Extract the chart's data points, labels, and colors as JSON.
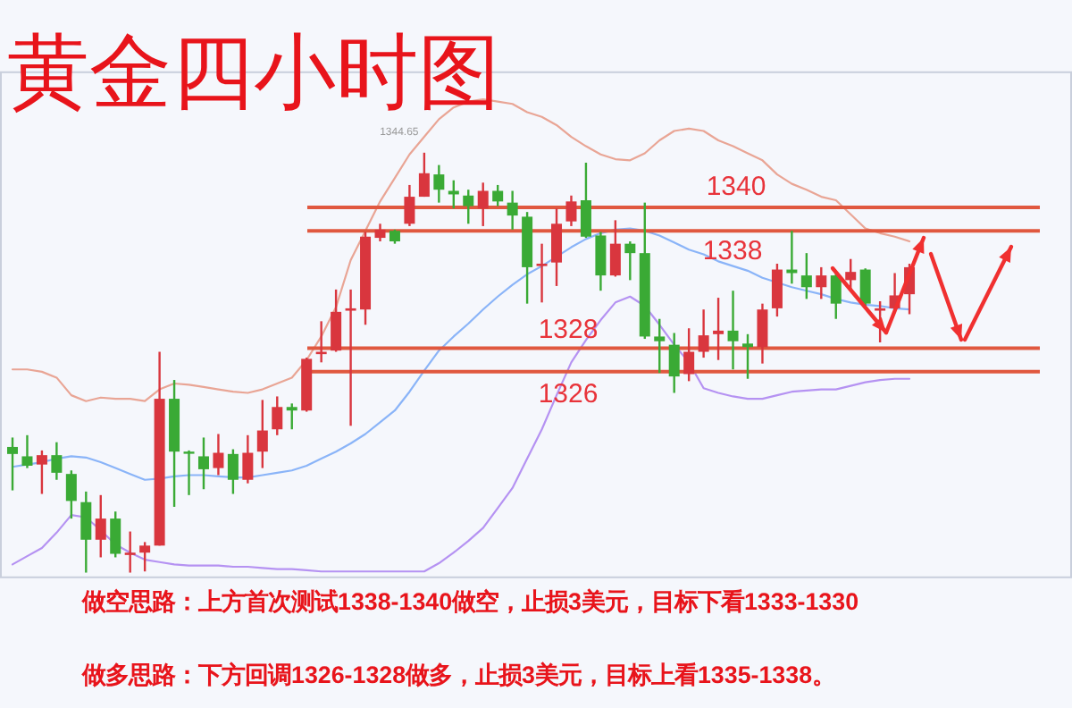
{
  "chart_data": {
    "type": "candlestick",
    "title": "黄金四小时图",
    "categories": [
      null,
      null,
      null,
      null,
      null,
      null,
      null,
      null,
      null,
      null,
      null,
      null,
      null,
      null,
      null,
      null,
      null,
      null,
      null,
      null,
      null,
      null,
      null,
      null,
      null,
      null,
      null,
      null,
      null,
      null,
      null,
      null,
      null,
      null,
      null,
      null,
      null,
      null,
      null,
      null,
      null,
      null,
      null,
      null,
      null,
      null,
      null,
      null,
      null,
      null,
      null,
      null,
      null,
      null,
      null,
      null,
      null,
      null,
      null,
      null,
      null,
      null,
      null,
      null,
      null,
      null,
      null,
      null,
      null,
      null,
      null,
      null
    ],
    "ohlc": [
      [
        1319.6,
        1320.4,
        1315.9,
        1319.0
      ],
      [
        1318.8,
        1320.6,
        1317.8,
        1318.0
      ],
      [
        1318.1,
        1319.3,
        1315.6,
        1318.9
      ],
      [
        1318.9,
        1320.0,
        1316.8,
        1317.4
      ],
      [
        1317.3,
        1317.6,
        1313.5,
        1315.0
      ],
      [
        1314.9,
        1315.8,
        1308.9,
        1311.7
      ],
      [
        1311.7,
        1315.5,
        1310.2,
        1313.5
      ],
      [
        1313.5,
        1314.1,
        1310.2,
        1310.5
      ],
      [
        1310.4,
        1312.4,
        1308.9,
        1310.6
      ],
      [
        1310.6,
        1311.5,
        1309.0,
        1311.2
      ],
      [
        1311.2,
        1327.7,
        1311.2,
        1323.7
      ],
      [
        1323.7,
        1325.3,
        1314.5,
        1319.2
      ],
      [
        1319.2,
        1319.3,
        1315.5,
        1319.1
      ],
      [
        1318.8,
        1320.4,
        1316.0,
        1317.7
      ],
      [
        1317.8,
        1320.7,
        1317.2,
        1319.1
      ],
      [
        1319.0,
        1319.4,
        1315.6,
        1316.8
      ],
      [
        1316.8,
        1320.6,
        1316.5,
        1319.1
      ],
      [
        1319.2,
        1323.6,
        1317.8,
        1321.0
      ],
      [
        1321.1,
        1323.9,
        1320.6,
        1323.0
      ],
      [
        1323.0,
        1323.3,
        1321.1,
        1322.7
      ],
      [
        1322.7,
        1327.2,
        1322.6,
        1327.1
      ],
      [
        1327.5,
        1330.3,
        1326.8,
        1327.7
      ],
      [
        1327.8,
        1333.0,
        1327.7,
        1331.1
      ],
      [
        1331.2,
        1333.0,
        1321.4,
        1331.4
      ],
      [
        1331.3,
        1337.9,
        1330.0,
        1337.5
      ],
      [
        1337.4,
        1338.6,
        1337.1,
        1338.1
      ],
      [
        1338.0,
        1338.1,
        1336.9,
        1337.1
      ],
      [
        1338.6,
        1341.9,
        1338.4,
        1340.9
      ],
      [
        1340.9,
        1344.65,
        1340.9,
        1342.9
      ],
      [
        1342.8,
        1343.6,
        1340.4,
        1341.5
      ],
      [
        1341.4,
        1342.3,
        1339.9,
        1341.1
      ],
      [
        1341.0,
        1341.5,
        1338.6,
        1340.1
      ],
      [
        1339.9,
        1342.1,
        1338.4,
        1341.4
      ],
      [
        1341.4,
        1341.9,
        1340.1,
        1340.5
      ],
      [
        1340.4,
        1341.4,
        1338.1,
        1339.3
      ],
      [
        1339.2,
        1339.6,
        1331.8,
        1334.9
      ],
      [
        1335.0,
        1336.9,
        1331.9,
        1335.2
      ],
      [
        1335.3,
        1339.9,
        1333.3,
        1338.6
      ],
      [
        1338.8,
        1341.0,
        1338.4,
        1340.5
      ],
      [
        1340.6,
        1343.8,
        1337.4,
        1337.5
      ],
      [
        1337.6,
        1337.9,
        1332.9,
        1334.2
      ],
      [
        1334.2,
        1338.9,
        1334.1,
        1336.9
      ],
      [
        1336.9,
        1337.1,
        1333.8,
        1336.1
      ],
      [
        1336.1,
        1340.4,
        1328.8,
        1329.0
      ],
      [
        1329.0,
        1330.5,
        1325.9,
        1328.6
      ],
      [
        1328.3,
        1329.3,
        1324.2,
        1325.6
      ],
      [
        1325.8,
        1329.7,
        1325.2,
        1327.7
      ],
      [
        1327.7,
        1331.3,
        1327.2,
        1329.1
      ],
      [
        1329.2,
        1332.3,
        1327.0,
        1329.5
      ],
      [
        1329.5,
        1332.9,
        1326.2,
        1328.6
      ],
      [
        1328.4,
        1329.2,
        1325.4,
        1328.1
      ],
      [
        1328.1,
        1331.8,
        1326.7,
        1331.3
      ],
      [
        1331.4,
        1335.2,
        1330.7,
        1334.7
      ],
      [
        1334.7,
        1338.0,
        1333.5,
        1334.4
      ],
      [
        1334.2,
        1336.1,
        1332.2,
        1333.2
      ],
      [
        1333.2,
        1334.9,
        1332.2,
        1334.2
      ],
      [
        1334.2,
        1334.6,
        1330.5,
        1331.8
      ],
      [
        1333.8,
        1335.6,
        1333.0,
        1334.5
      ],
      [
        1334.7,
        1334.8,
        1331.5,
        1331.8
      ],
      [
        1331.2,
        1332.0,
        1328.5,
        1331.4
      ],
      [
        1331.4,
        1334.4,
        1331.0,
        1332.5
      ],
      [
        1332.6,
        1335.2,
        1330.9,
        1334.9
      ],
      null,
      null,
      null,
      null,
      null,
      null,
      null,
      null,
      null,
      null
    ],
    "colors": [
      "#3aaa35",
      "#3aaa35",
      "#d9363e",
      "#3aaa35",
      "#3aaa35",
      "#3aaa35",
      "#d9363e",
      "#3aaa35",
      "#d9363e",
      "#d9363e",
      "#d9363e",
      "#3aaa35",
      "#3aaa35",
      "#3aaa35",
      "#d9363e",
      "#3aaa35",
      "#d9363e",
      "#d9363e",
      "#d9363e",
      "#3aaa35",
      "#d9363e",
      "#d9363e",
      "#d9363e",
      "#d9363e",
      "#d9363e",
      "#d9363e",
      "#3aaa35",
      "#d9363e",
      "#d9363e",
      "#3aaa35",
      "#3aaa35",
      "#3aaa35",
      "#d9363e",
      "#3aaa35",
      "#3aaa35",
      "#3aaa35",
      "#d9363e",
      "#d9363e",
      "#d9363e",
      "#3aaa35",
      "#3aaa35",
      "#d9363e",
      "#3aaa35",
      "#3aaa35",
      "#3aaa35",
      "#3aaa35",
      "#d9363e",
      "#d9363e",
      "#d9363e",
      "#3aaa35",
      "#3aaa35",
      "#d9363e",
      "#d9363e",
      "#3aaa35",
      "#3aaa35",
      "#d9363e",
      "#3aaa35",
      "#d9363e",
      "#3aaa35",
      "#d9363e",
      "#d9363e",
      "#d9363e",
      null,
      null,
      null,
      null,
      null,
      null,
      null,
      null,
      null,
      null
    ],
    "series": [
      {
        "type": "line",
        "color": "#e9a595",
        "values": [
          1326.2,
          1326.2,
          1326.0,
          1325.5,
          1324.0,
          1323.5,
          1323.8,
          1323.7,
          1323.7,
          1323.5,
          1324.5,
          1325.0,
          1324.9,
          1324.7,
          1324.5,
          1324.3,
          1324.2,
          1324.5,
          1325.0,
          1325.5,
          1327.0,
          1329.0,
          1331.5,
          1335.5,
          1338.0,
          1340.5,
          1342.5,
          1344.5,
          1346.0,
          1347.5,
          1348.5,
          1349.0,
          1349.2,
          1349.0,
          1348.8,
          1348.1,
          1347.7,
          1347.0,
          1346.0,
          1345.2,
          1344.5,
          1344.1,
          1344.0,
          1344.6,
          1345.7,
          1346.5,
          1346.7,
          1346.5,
          1345.7,
          1345.2,
          1344.6,
          1344.0,
          1342.8,
          1342.0,
          1341.5,
          1340.9,
          1340.6,
          1339.4,
          1338.2,
          1337.8,
          1337.5,
          1337.1,
          null,
          null,
          null,
          null,
          null,
          null,
          null,
          null,
          null,
          null
        ]
      },
      {
        "type": "line",
        "color": "#8ab4f8",
        "values": [
          1317.9,
          1318.1,
          1318.3,
          1318.6,
          1318.8,
          1318.7,
          1318.3,
          1317.8,
          1317.3,
          1316.8,
          1316.9,
          1317.1,
          1317.2,
          1317.2,
          1317.1,
          1317.0,
          1317.0,
          1317.2,
          1317.4,
          1317.6,
          1318.0,
          1318.6,
          1319.2,
          1319.9,
          1320.7,
          1321.7,
          1322.7,
          1324.3,
          1326.1,
          1327.8,
          1329.0,
          1330.1,
          1331.3,
          1332.4,
          1333.4,
          1334.3,
          1335.0,
          1335.8,
          1336.6,
          1337.3,
          1337.8,
          1338.1,
          1338.2,
          1338.0,
          1337.6,
          1337.0,
          1336.4,
          1336.0,
          1335.4,
          1335.0,
          1334.6,
          1334.0,
          1333.6,
          1333.2,
          1332.9,
          1332.6,
          1332.2,
          1331.9,
          1331.7,
          1331.6,
          1331.4,
          1331.3,
          null,
          null,
          null,
          null,
          null,
          null,
          null,
          null,
          null,
          null
        ]
      },
      {
        "type": "line",
        "color": "#b592f2",
        "values": [
          1309.6,
          1310.3,
          1311.0,
          1312.3,
          1313.8,
          1313.6,
          1312.5,
          1311.3,
          1310.6,
          1310.0,
          1309.8,
          1309.6,
          1309.5,
          1309.5,
          1309.5,
          1309.4,
          1309.4,
          1309.3,
          1309.2,
          1309.2,
          1309.1,
          1309.0,
          1309.0,
          1309.0,
          1309.0,
          1309.0,
          1309.0,
          1309.0,
          1309.0,
          1309.7,
          1310.6,
          1311.6,
          1312.7,
          1314.4,
          1316.1,
          1318.6,
          1321.1,
          1324.0,
          1326.8,
          1328.7,
          1330.4,
          1331.9,
          1332.4,
          1331.6,
          1330.0,
          1328.3,
          1326.8,
          1324.6,
          1324.2,
          1323.9,
          1323.7,
          1323.7,
          1324.0,
          1324.3,
          1324.4,
          1324.5,
          1324.5,
          1324.8,
          1325.1,
          1325.3,
          1325.4,
          1325.4,
          null,
          null,
          null,
          null,
          null,
          null,
          null,
          null,
          null,
          null
        ]
      }
    ],
    "ylim": [
      1308.5,
      1351.5
    ],
    "ref_lines": [
      {
        "axis": "y",
        "value": 1340,
        "label": "1340",
        "color": "#e0583f"
      },
      {
        "axis": "y",
        "value": 1338,
        "label": "1338",
        "color": "#e0583f"
      },
      {
        "axis": "y",
        "value": 1328,
        "label": "1328",
        "color": "#e0583f"
      },
      {
        "axis": "y",
        "value": 1326,
        "label": "1326",
        "color": "#e0583f"
      }
    ],
    "annotations": [
      {
        "text": "1344.65",
        "y": 1344.65
      },
      "做空思路：上方首次测试1338-1340做空，止损3美元，目标下看1333-1330",
      "做多思路：下方回调1326-1328做多，止损3美元，目标上看1335-1338。"
    ]
  }
}
